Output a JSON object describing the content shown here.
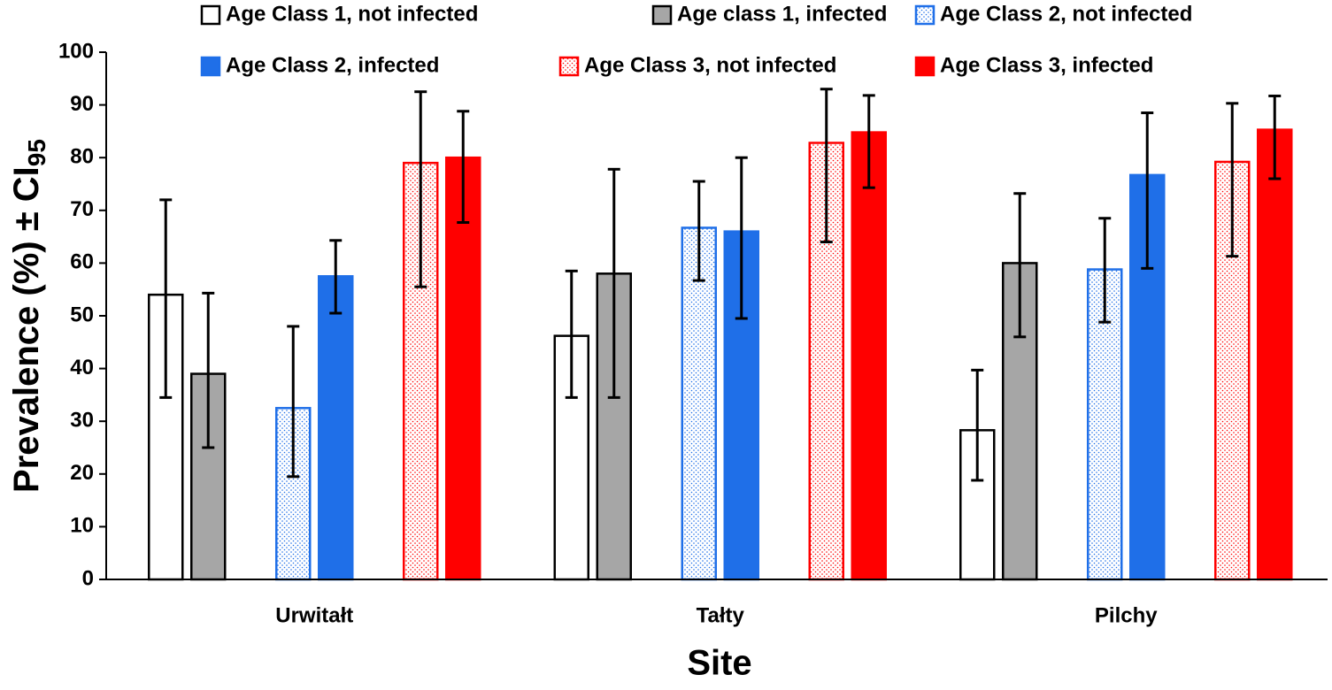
{
  "chart_data": {
    "type": "bar",
    "x_label": "Site",
    "y_label": "Prevalence (%) ± CI",
    "y_label_subscript": "95",
    "categories": [
      "Urwitałt",
      "Tałty",
      "Pilchy"
    ],
    "ylim": [
      0,
      100
    ],
    "yticks": [
      0,
      10,
      20,
      30,
      40,
      50,
      60,
      70,
      80,
      90,
      100
    ],
    "legend": "top",
    "series": [
      {
        "name": "Age Class 1, not infected",
        "color": "#ffffff",
        "edgecolor": "#000000",
        "values": [
          54,
          46.2,
          28.3
        ],
        "lower": [
          34.5,
          34.5,
          18.8
        ],
        "upper": [
          72,
          58.5,
          39.7
        ]
      },
      {
        "name": "Age class 1, infected",
        "color": "#a6a6a6",
        "edgecolor": "#000000",
        "values": [
          39,
          58,
          60
        ],
        "lower": [
          25,
          34.5,
          46
        ],
        "upper": [
          54.3,
          77.8,
          73.2
        ]
      },
      {
        "name": "Age Class 2, not infected",
        "color": "#1f6fe8",
        "edgecolor": "#1f6fe8",
        "hatch": "dots",
        "values": [
          32.5,
          66.7,
          58.8
        ],
        "lower": [
          19.5,
          56.7,
          48.8
        ],
        "upper": [
          48,
          75.5,
          68.5
        ]
      },
      {
        "name": "Age Class 2, infected",
        "color": "#1f6fe8",
        "edgecolor": "#1f6fe8",
        "values": [
          57.5,
          66,
          76.7
        ],
        "lower": [
          50.5,
          49.5,
          59
        ],
        "upper": [
          64.3,
          80,
          88.5
        ]
      },
      {
        "name": "Age Class 3, not infected",
        "color": "#ff0000",
        "edgecolor": "#ff0000",
        "hatch": "dots",
        "values": [
          79,
          82.8,
          79.2
        ],
        "lower": [
          55.5,
          64,
          61.3
        ],
        "upper": [
          92.5,
          93,
          90.3
        ]
      },
      {
        "name": "Age Class 3, infected",
        "color": "#ff0000",
        "edgecolor": "#ff0000",
        "values": [
          80,
          84.8,
          85.3
        ],
        "lower": [
          67.7,
          74.3,
          76
        ],
        "upper": [
          88.8,
          91.8,
          91.7
        ]
      }
    ]
  }
}
